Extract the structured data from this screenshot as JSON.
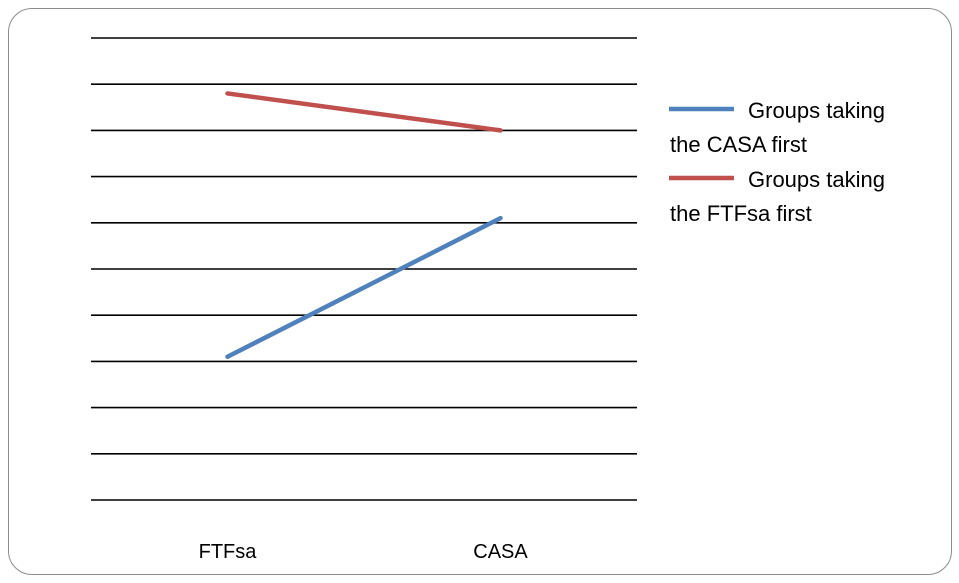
{
  "chart_data": {
    "type": "line",
    "categories": [
      "FTFsa",
      "CASA"
    ],
    "ylim": [
      0,
      10
    ],
    "grid": true,
    "legend_position": "right",
    "series": [
      {
        "name": "Groups taking the CASA first",
        "color": "#4f81bd",
        "values": [
          3.1,
          6.1
        ]
      },
      {
        "name": "Groups taking the FTFsa first",
        "color": "#c0504d",
        "values": [
          8.8,
          8.0
        ]
      }
    ]
  }
}
